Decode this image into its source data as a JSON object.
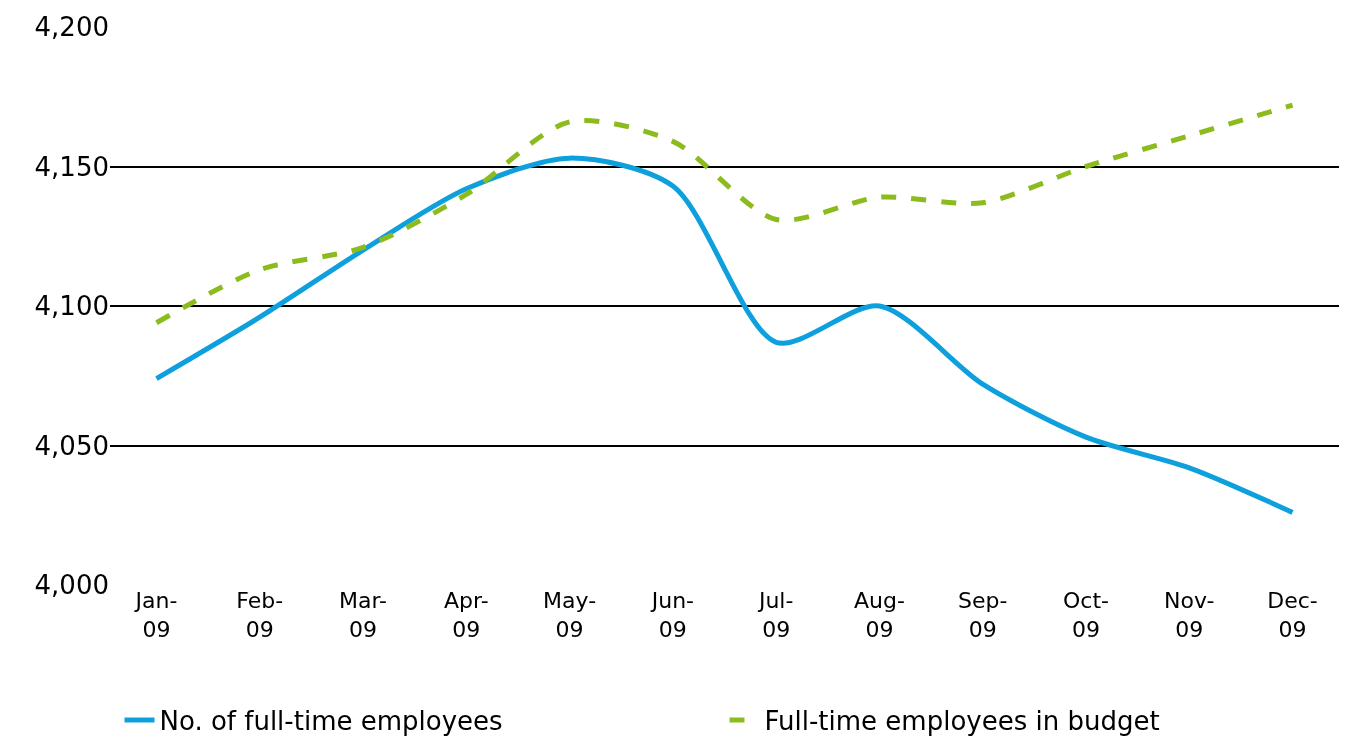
{
  "chart_data": {
    "type": "line",
    "categories": [
      "Jan-09",
      "Feb-09",
      "Mar-09",
      "Apr-09",
      "May-09",
      "Jun-09",
      "Jul-09",
      "Aug-09",
      "Sep-09",
      "Oct-09",
      "Nov-09",
      "Dec-09"
    ],
    "series": [
      {
        "name": "No. of full-time employees",
        "color": "#0ea0dc",
        "line_style": "solid",
        "values": [
          4074,
          4096,
          4120,
          4142,
          4153,
          4143,
          4087,
          4100,
          4072,
          4053,
          4042,
          4026
        ]
      },
      {
        "name": "Full-time employees in budget",
        "color": "#8cbb1e",
        "line_style": "dashed",
        "values": [
          4094,
          4113,
          4121,
          4140,
          4166,
          4159,
          4131,
          4139,
          4137,
          4150,
          4161,
          4172
        ]
      }
    ],
    "ylim": [
      4000,
      4200
    ],
    "yticks": [
      {
        "value": 4000,
        "label": "4,000"
      },
      {
        "value": 4050,
        "label": "4,050"
      },
      {
        "value": 4100,
        "label": "4,100"
      },
      {
        "value": 4150,
        "label": "4,150"
      },
      {
        "value": 4200,
        "label": "4,200"
      }
    ],
    "grid": "y",
    "legend": "bottom",
    "marker": "none"
  }
}
